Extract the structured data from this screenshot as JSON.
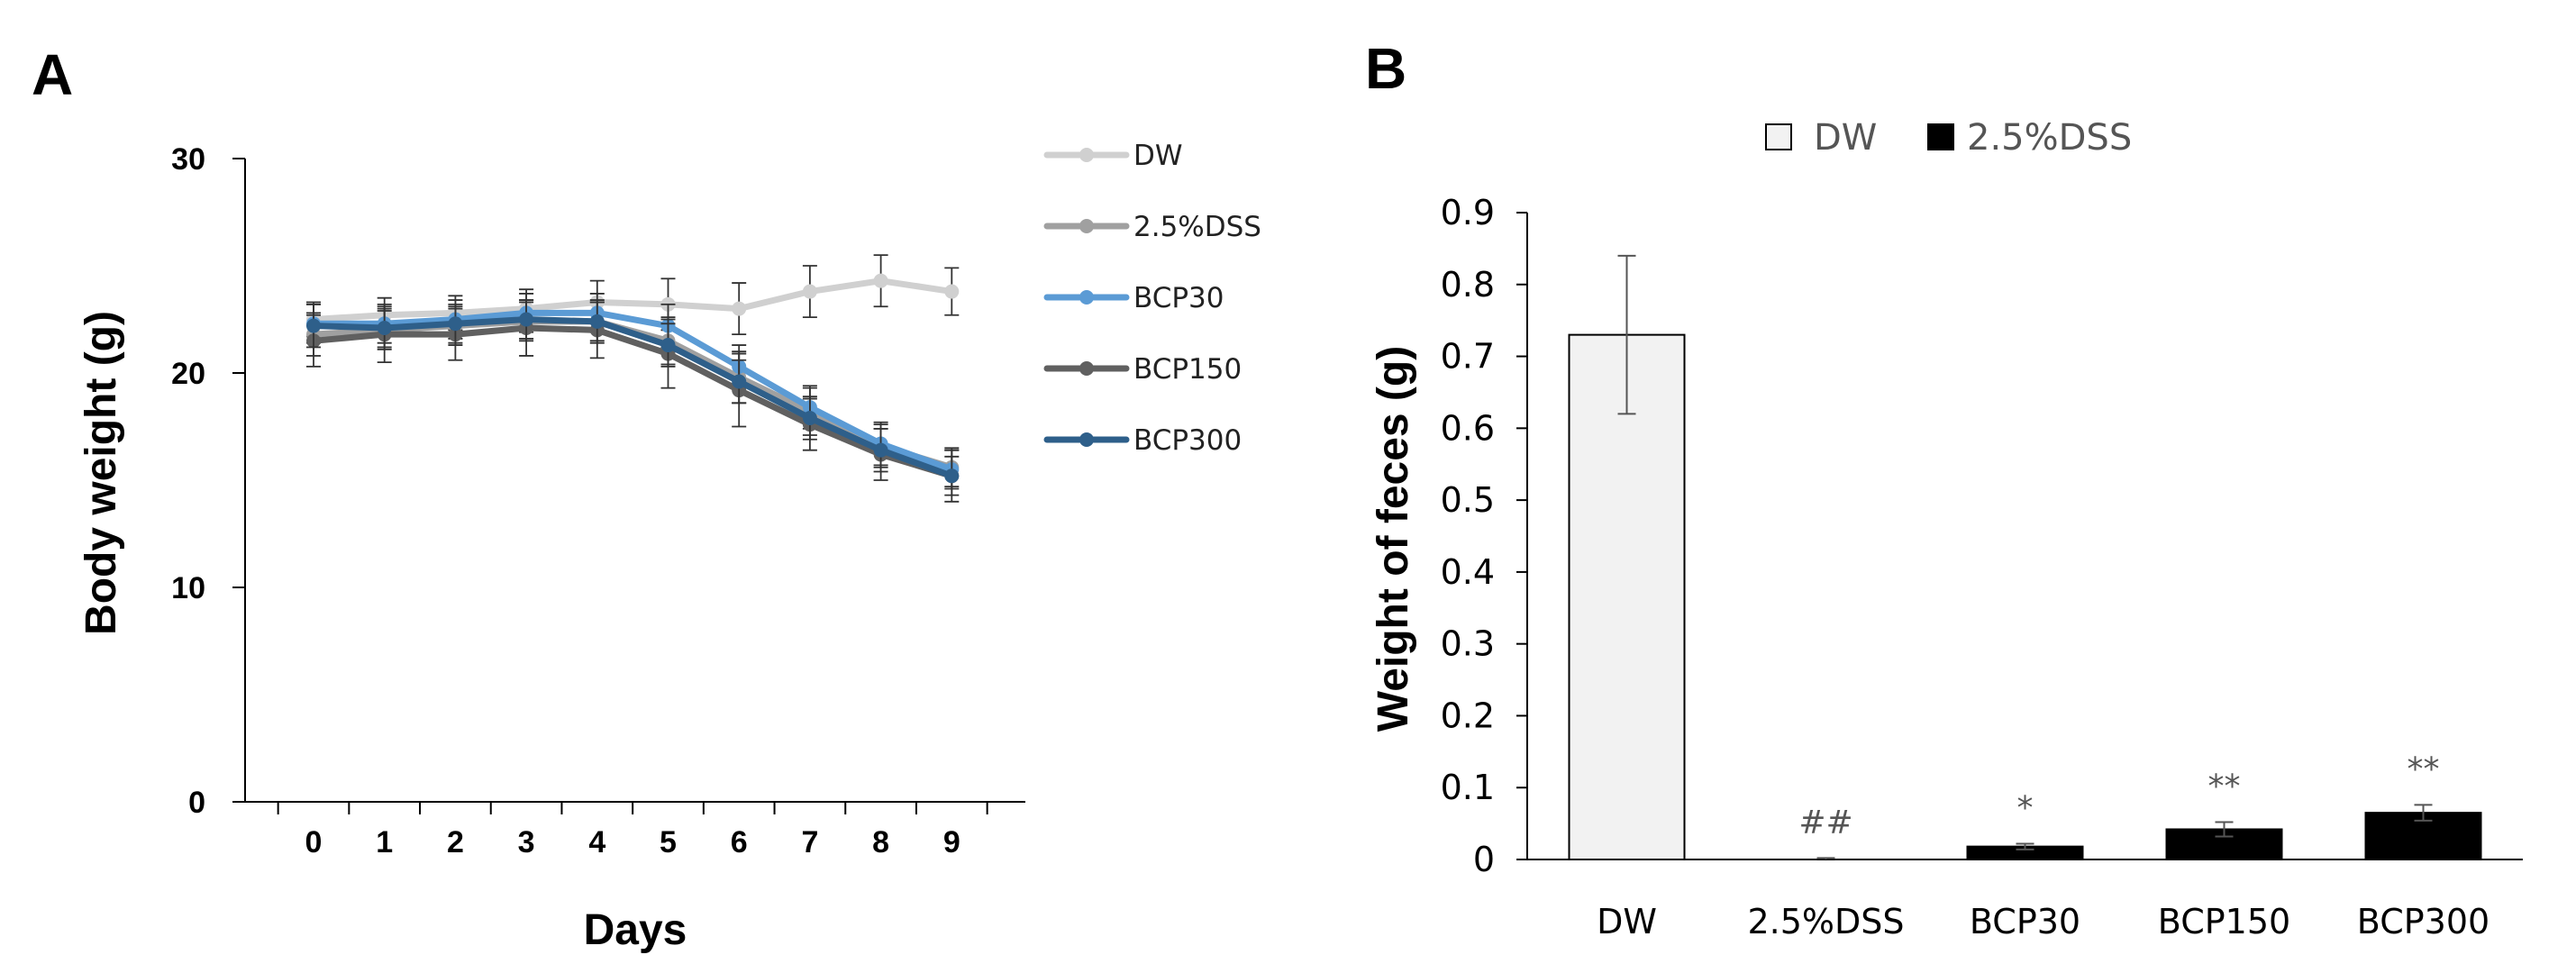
{
  "chart_data": [
    {
      "panel": "A",
      "type": "line",
      "title": "",
      "xlabel": "Days",
      "ylabel": "Body weight (g)",
      "x": [
        0,
        1,
        2,
        3,
        4,
        5,
        6,
        7,
        8,
        9
      ],
      "x_tick_labels": [
        "0",
        "1",
        "2",
        "3",
        "4",
        "5",
        "6",
        "7",
        "8",
        "9"
      ],
      "ylim": [
        0,
        30
      ],
      "y_ticks": [
        0,
        10,
        20,
        30
      ],
      "y_tick_labels": [
        "0",
        "10",
        "20",
        "30"
      ],
      "legend_position": "right",
      "series": [
        {
          "name": "DW",
          "color": "#d0d0d0",
          "values": [
            22.5,
            22.7,
            22.8,
            23.0,
            23.3,
            23.2,
            23.0,
            23.8,
            24.3,
            23.8
          ],
          "errors": [
            0.8,
            0.8,
            0.8,
            0.9,
            1.0,
            1.2,
            1.2,
            1.2,
            1.2,
            1.1
          ]
        },
        {
          "name": "2.5%DSS",
          "color": "#a0a0a0",
          "values": [
            21.8,
            22.0,
            22.2,
            22.4,
            22.4,
            21.5,
            19.8,
            18.2,
            16.6,
            15.6
          ],
          "errors": [
            1.0,
            0.9,
            0.9,
            0.9,
            1.0,
            1.1,
            1.2,
            1.1,
            1.0,
            0.9
          ]
        },
        {
          "name": "BCP30",
          "color": "#5b9bd5",
          "values": [
            22.3,
            22.3,
            22.5,
            22.8,
            22.8,
            22.2,
            20.3,
            18.4,
            16.7,
            15.5
          ],
          "errors": [
            0.9,
            0.9,
            0.9,
            0.9,
            0.9,
            1.0,
            1.0,
            1.0,
            1.0,
            0.9
          ]
        },
        {
          "name": "BCP150",
          "color": "#606060",
          "values": [
            21.5,
            21.8,
            21.8,
            22.1,
            22.0,
            20.9,
            19.2,
            17.6,
            16.2,
            15.2
          ],
          "errors": [
            1.2,
            1.3,
            1.2,
            1.3,
            1.3,
            1.6,
            1.7,
            1.2,
            1.2,
            1.2
          ]
        },
        {
          "name": "BCP300",
          "color": "#2e5f8a",
          "values": [
            22.2,
            22.1,
            22.3,
            22.5,
            22.4,
            21.3,
            19.6,
            17.9,
            16.4,
            15.2
          ],
          "errors": [
            1.0,
            0.9,
            0.9,
            0.9,
            0.9,
            1.0,
            1.0,
            1.0,
            1.0,
            0.9
          ]
        }
      ]
    },
    {
      "panel": "B",
      "type": "bar",
      "title": "",
      "xlabel": "",
      "ylabel": "Weight of feces (g)",
      "categories": [
        "DW",
        "2.5%DSS",
        "BCP30",
        "BCP150",
        "BCP300"
      ],
      "values": [
        0.73,
        0.0,
        0.018,
        0.042,
        0.065
      ],
      "errors": [
        0.11,
        0.002,
        0.004,
        0.01,
        0.011
      ],
      "fills": [
        "#f2f2f2",
        "#000000",
        "#000000",
        "#000000",
        "#000000"
      ],
      "annotations": [
        "",
        "##",
        "*",
        "**",
        "**"
      ],
      "ylim": [
        0,
        0.9
      ],
      "y_ticks": [
        0,
        0.1,
        0.2,
        0.3,
        0.4,
        0.5,
        0.6,
        0.7,
        0.8,
        0.9
      ],
      "y_tick_labels": [
        "0",
        "0.1",
        "0.2",
        "0.3",
        "0.4",
        "0.5",
        "0.6",
        "0.7",
        "0.8",
        "0.9"
      ],
      "legend_position": "top",
      "legend": [
        {
          "name": "DW",
          "fill": "#f2f2f2"
        },
        {
          "name": "2.5%DSS",
          "fill": "#000000"
        }
      ]
    }
  ]
}
